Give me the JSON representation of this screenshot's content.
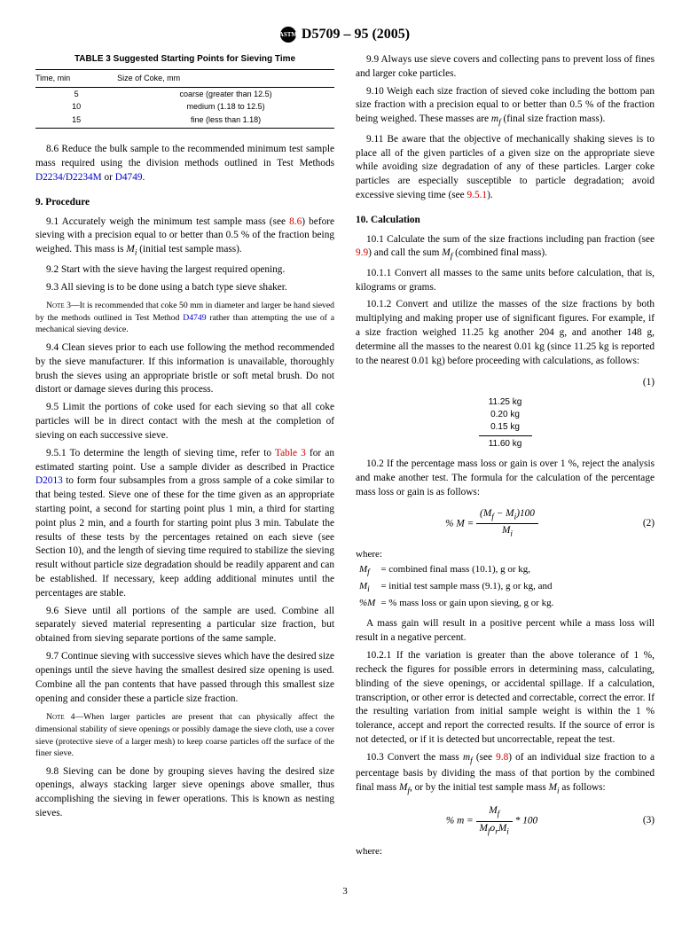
{
  "header": {
    "designation": "D5709 – 95 (2005)"
  },
  "table3": {
    "title": "TABLE 3  Suggested Starting Points for Sieving Time",
    "headers": [
      "Time, min",
      "Size of Coke, mm"
    ],
    "rows": [
      [
        "5",
        "coarse (greater than 12.5)"
      ],
      [
        "10",
        "medium (1.18 to 12.5)"
      ],
      [
        "15",
        "fine (less than 1.18)"
      ]
    ]
  },
  "left": {
    "p86_a": "8.6  Reduce the bulk sample to the recommended minimum test sample mass required using the division methods outlined in Test Methods ",
    "p86_link1": "D2234/D2234M",
    "p86_b": " or ",
    "p86_link2": "D4749",
    "p86_c": ".",
    "sec9": "9.  Procedure",
    "p91_a": "9.1  Accurately weigh the minimum test sample mass (see ",
    "p91_link": "8.6",
    "p91_b": ") before sieving with a precision equal to or better than 0.5 % of the fraction being weighed. This mass is ",
    "p91_c": " (initial test sample mass).",
    "p92": "9.2  Start with the sieve having the largest required opening.",
    "p93": "9.3  All sieving is to be done using a batch type sieve shaker.",
    "note3_a": "3—It is recommended that coke 50 mm in diameter and larger be hand sieved by the methods outlined in Test Method ",
    "note3_link": "D4749",
    "note3_b": " rather than attempting the use of a mechanical sieving device.",
    "p94": "9.4  Clean sieves prior to each use following the method recommended by the sieve manufacturer. If this information is unavailable, thoroughly brush the sieves using an appropriate bristle or soft metal brush. Do not distort or damage sieves during this process.",
    "p95": "9.5  Limit the portions of coke used for each sieving so that all coke particles will be in direct contact with the mesh at the completion of sieving on each successive sieve.",
    "p951_a": "9.5.1  To determine the length of sieving time, refer to ",
    "p951_link1": "Table 3",
    "p951_b": " for an estimated starting point. Use a sample divider as described in Practice ",
    "p951_link2": "D2013",
    "p951_c": " to form four subsamples from a gross sample of a coke similar to that being tested. Sieve one of these for the time given as an appropriate starting point, a second for starting point plus 1 min, a third for starting point plus 2 min, and a fourth for starting point plus 3 min. Tabulate the results of these tests by the percentages retained on each sieve (see Section 10), and the length of sieving time required to stabilize the sieving result without particle size degradation should be readily apparent and can be established. If necessary, keep adding additional minutes until the percentages are stable.",
    "p96": "9.6  Sieve until all portions of the sample are used. Combine all separately sieved material representing a particular size fraction, but obtained from sieving separate portions of the same sample.",
    "p97": "9.7  Continue sieving with successive sieves which have the desired size openings until the sieve having the smallest desired size opening is used. Combine all the pan contents that have passed through this smallest size opening and consider these a particle size fraction.",
    "note4": "4—When larger particles are present that can physically affect the dimensional stability of sieve openings or possibly damage the sieve cloth, use a cover sieve (protective sieve of a larger mesh) to keep coarse particles off the surface of the finer sieve.",
    "p98": "9.8  Sieving can be done by grouping sieves having the desired size openings, always stacking larger sieve openings above smaller, thus accomplishing the sieving in fewer operations. This is known as nesting sieves."
  },
  "right": {
    "p99": "9.9  Always use sieve covers and collecting pans to prevent loss of fines and larger coke particles.",
    "p910_a": "9.10  Weigh each size fraction of sieved coke including the bottom pan size fraction with a precision equal to or better than 0.5 % of the fraction being weighed. These masses are ",
    "p910_b": " (final size fraction mass).",
    "p911_a": "9.11  Be aware that the objective of mechanically shaking sieves is to place all of the given particles of a given size on the appropriate sieve while avoiding size degradation of any of these particles. Larger coke particles are especially susceptible to particle degradation; avoid excessive sieving time (see ",
    "p911_link": "9.5.1",
    "p911_b": ").",
    "sec10": "10.  Calculation",
    "p101_a": "10.1  Calculate the sum of the size fractions including pan fraction (see ",
    "p101_link": "9.9",
    "p101_b": ") and call the sum ",
    "p101_c": " (combined final mass).",
    "p1011": "10.1.1  Convert all masses to the same units before calculation, that is, kilograms or grams.",
    "p1012": "10.1.2  Convert and utilize the masses of the size fractions by both multiplying and making proper use of significant figures. For example, if a size fraction weighed 11.25 kg another 204 g, and another 148 g, determine all the masses to the nearest 0.01 kg (since 11.25 kg is reported to the nearest 0.01 kg) before proceeding with calculations, as follows:",
    "calc": {
      "lines": [
        "11.25 kg",
        "0.20 kg",
        "0.15 kg"
      ],
      "result": "11.60 kg"
    },
    "p102": "10.2  If the percentage mass loss or gain is over 1 %, reject the analysis and make another test. The formula for the calculation of the percentage mass loss or gain is as follows:",
    "eq2_num": "(2)",
    "where_label": "where:",
    "where1a": "M",
    "where1b": "f",
    "where1c": "= combined final mass (10.1), g or kg,",
    "where2a": "M",
    "where2b": "i",
    "where2c": "= initial test sample mass (9.1), g or kg, and",
    "where3a": "%M",
    "where3c": "= % mass loss or gain upon sieving, g or kg.",
    "p102_post": "A mass gain will result in a positive percent while a mass loss will result in a negative percent.",
    "p1021": "10.2.1  If the variation is greater than the above tolerance of 1 %, recheck the figures for possible errors in determining mass, calculating, blinding of the sieve openings, or accidental spillage. If a calculation, transcription, or other error is detected and correctable, correct the error. If the resulting variation from initial sample weight is within the 1 % tolerance, accept and report the corrected results. If the source of error is not detected, or if it is detected but uncorrectable, repeat the test.",
    "p103_a": "10.3  Convert the mass ",
    "p103_b": " (see ",
    "p103_link": "9.8",
    "p103_c": ") of an individual size fraction to a percentage basis by dividing the mass of that portion by the combined final mass ",
    "p103_d": ", or by the initial test sample mass ",
    "p103_e": " as follows:",
    "eq3_num": "(3)",
    "where2_label": "where:"
  },
  "eq1_num": "(1)",
  "page_number": "3"
}
